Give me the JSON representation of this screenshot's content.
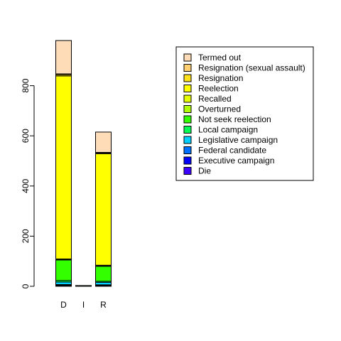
{
  "chart_data": {
    "type": "bar",
    "stacked": true,
    "categories": [
      "D",
      "I",
      "R"
    ],
    "ylim": [
      0,
      1000
    ],
    "yticks": [
      0,
      200,
      400,
      600,
      800
    ],
    "legend_position": "top-right",
    "series": [
      {
        "name": "Die",
        "color": "#3b00ff",
        "values": [
          2,
          0,
          2
        ]
      },
      {
        "name": "Executive campaign",
        "color": "#0000ff",
        "values": [
          3,
          0,
          2
        ]
      },
      {
        "name": "Federal candidate",
        "color": "#0070ff",
        "values": [
          2,
          0,
          2
        ]
      },
      {
        "name": "Legislative campaign",
        "color": "#00d0ff",
        "values": [
          10,
          0,
          10
        ]
      },
      {
        "name": "Local campaign",
        "color": "#00ff55",
        "values": [
          6,
          0,
          4
        ]
      },
      {
        "name": "Not seek reelection",
        "color": "#33ff00",
        "values": [
          82,
          3,
          60
        ]
      },
      {
        "name": "Overturned",
        "color": "#b0ff00",
        "values": [
          2,
          0,
          2
        ]
      },
      {
        "name": "Recalled",
        "color": "#e5ff00",
        "values": [
          2,
          0,
          2
        ]
      },
      {
        "name": "Reelection",
        "color": "#ffff00",
        "values": [
          730,
          0,
          445
        ]
      },
      {
        "name": "Resignation",
        "color": "#ffe21a",
        "values": [
          5,
          0,
          3
        ]
      },
      {
        "name": "Resignation (sexual assault)",
        "color": "#ffcf70",
        "values": [
          3,
          0,
          2
        ]
      },
      {
        "name": "Termed out",
        "color": "#ffdcb8",
        "values": [
          133,
          0,
          81
        ]
      }
    ]
  }
}
